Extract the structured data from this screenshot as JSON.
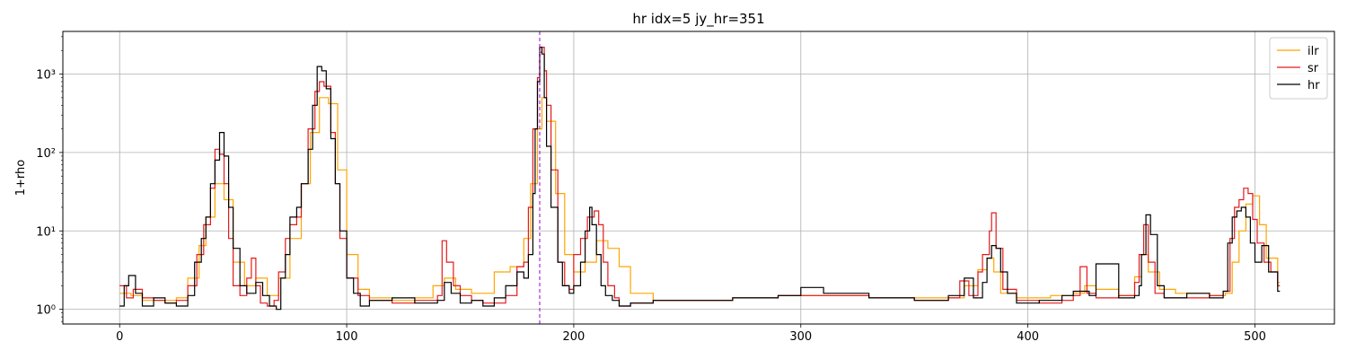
{
  "chart_data": {
    "type": "line",
    "title": "hr  idx=5  jy_hr=351",
    "xlabel": "",
    "ylabel": "1+rho",
    "xlim": [
      -25,
      535
    ],
    "ylim": [
      0.65,
      3500
    ],
    "yscale": "log",
    "grid": true,
    "legend_position": "top-right",
    "x_ticks": [
      0,
      100,
      200,
      300,
      400,
      500
    ],
    "y_ticks": [
      {
        "value": 1,
        "label": "10⁰"
      },
      {
        "value": 10,
        "label": "10¹"
      },
      {
        "value": 100,
        "label": "10²"
      },
      {
        "value": 1000,
        "label": "10³"
      }
    ],
    "vline": {
      "x": 185,
      "color": "#9400d3",
      "style": "dashed"
    },
    "series": [
      {
        "name": "ilr",
        "color": "#ffa500",
        "step": true,
        "x": [
          0,
          5,
          10,
          15,
          20,
          25,
          30,
          35,
          38,
          42,
          46,
          50,
          55,
          60,
          65,
          70,
          75,
          80,
          84,
          88,
          92,
          96,
          100,
          105,
          110,
          120,
          130,
          138,
          143,
          148,
          155,
          165,
          172,
          178,
          181,
          184,
          186,
          188,
          192,
          196,
          200,
          205,
          210,
          215,
          220,
          225,
          235,
          250,
          270,
          290,
          310,
          330,
          350,
          365,
          372,
          378,
          382,
          385,
          388,
          395,
          410,
          420,
          425,
          430,
          440,
          447,
          450,
          453,
          458,
          465,
          480,
          487,
          490,
          493,
          496,
          499,
          502,
          505,
          510
        ],
        "values": [
          1.6,
          1.5,
          1.3,
          1.3,
          1.3,
          1.4,
          2.5,
          6.5,
          15,
          40,
          25,
          4,
          2,
          2.5,
          1.5,
          2.5,
          8,
          40,
          180,
          500,
          420,
          60,
          5,
          1.8,
          1.4,
          1.3,
          1.4,
          2,
          2.5,
          1.8,
          1.6,
          3,
          3.5,
          8,
          40,
          200,
          500,
          250,
          30,
          5,
          3,
          4,
          7.5,
          6,
          3.5,
          1.6,
          1.3,
          1.3,
          1.4,
          1.5,
          1.5,
          1.4,
          1.4,
          1.4,
          2,
          3.2,
          4.5,
          3,
          1.6,
          1.4,
          1.5,
          1.6,
          2,
          1.8,
          1.5,
          2.6,
          5,
          3,
          1.8,
          1.6,
          1.5,
          1.6,
          4,
          10,
          22,
          28,
          12,
          4.5,
          2.2
        ]
      },
      {
        "name": "sr",
        "color": "#e41a1c",
        "step": true,
        "x": [
          0,
          3,
          6,
          10,
          15,
          20,
          25,
          30,
          34,
          37,
          40,
          42,
          44,
          46,
          48,
          50,
          53,
          56,
          58,
          60,
          62,
          65,
          68,
          70,
          73,
          75,
          78,
          80,
          83,
          86,
          88,
          90,
          93,
          95,
          97,
          100,
          105,
          110,
          120,
          130,
          140,
          142,
          144,
          147,
          150,
          155,
          160,
          165,
          170,
          175,
          178,
          180,
          182,
          184,
          185,
          186,
          187,
          188,
          190,
          193,
          196,
          198,
          200,
          203,
          206,
          209,
          211,
          213,
          215,
          218,
          220,
          225,
          235,
          250,
          270,
          290,
          310,
          330,
          350,
          365,
          370,
          374,
          378,
          380,
          383,
          384,
          386,
          389,
          395,
          405,
          415,
          420,
          423,
          426,
          430,
          440,
          447,
          449,
          451,
          453,
          456,
          460,
          470,
          480,
          486,
          489,
          491,
          493,
          495,
          497,
          499,
          501,
          504,
          507,
          510
        ],
        "values": [
          2,
          1.4,
          1.8,
          1.4,
          1.3,
          1.2,
          1.3,
          2,
          5,
          12,
          35,
          110,
          95,
          40,
          8,
          2,
          1.5,
          2.5,
          4.5,
          2,
          1.2,
          1.1,
          1.3,
          3,
          8,
          12,
          15,
          40,
          200,
          600,
          800,
          700,
          180,
          40,
          8,
          2.5,
          1.5,
          1.3,
          1.2,
          1.3,
          1.5,
          7.5,
          4,
          2,
          1.5,
          1.3,
          1.2,
          1.2,
          1.5,
          3.5,
          4,
          20,
          200,
          900,
          1900,
          2200,
          1100,
          400,
          60,
          4,
          2,
          1.8,
          5,
          8,
          15,
          18,
          12,
          4,
          2,
          1.4,
          1.1,
          1.2,
          1.3,
          1.3,
          1.4,
          1.5,
          1.5,
          1.4,
          1.3,
          1.4,
          2.3,
          1.5,
          3,
          5,
          10,
          17,
          6,
          1.8,
          1.3,
          1.2,
          1.3,
          1.5,
          3.5,
          1.6,
          1.4,
          1.5,
          2.2,
          5,
          12,
          4,
          1.6,
          1.4,
          1.4,
          1.5,
          1.7,
          8,
          20,
          25,
          35,
          30,
          14,
          7,
          4,
          3,
          2
        ]
      },
      {
        "name": "hr",
        "color": "#000000",
        "step": true,
        "x": [
          0,
          2,
          4,
          7,
          10,
          15,
          20,
          25,
          30,
          33,
          36,
          38,
          40,
          42,
          44,
          46,
          48,
          50,
          53,
          56,
          60,
          63,
          66,
          69,
          71,
          73,
          75,
          78,
          80,
          83,
          85,
          87,
          89,
          91,
          93,
          95,
          97,
          100,
          103,
          106,
          110,
          120,
          130,
          140,
          143,
          146,
          150,
          155,
          160,
          165,
          170,
          175,
          178,
          180,
          182,
          183,
          184,
          185,
          186,
          187,
          188,
          190,
          193,
          195,
          198,
          200,
          203,
          205,
          207,
          208,
          210,
          212,
          214,
          217,
          220,
          225,
          235,
          250,
          270,
          290,
          300,
          310,
          330,
          350,
          365,
          372,
          376,
          380,
          382,
          384,
          386,
          388,
          391,
          395,
          405,
          415,
          420,
          423,
          427,
          430,
          440,
          447,
          449,
          450,
          452,
          454,
          457,
          460,
          470,
          480,
          486,
          488,
          490,
          492,
          494,
          496,
          498,
          500,
          503,
          506,
          510
        ],
        "values": [
          1.1,
          2,
          2.7,
          1.6,
          1.1,
          1.4,
          1.2,
          1.1,
          1.5,
          4,
          8,
          15,
          40,
          80,
          180,
          90,
          20,
          6,
          2,
          1.6,
          2.2,
          1.5,
          1.1,
          1,
          2.5,
          5,
          15,
          20,
          40,
          110,
          400,
          1250,
          1100,
          650,
          150,
          40,
          10,
          2.5,
          1.6,
          1.1,
          1.3,
          1.4,
          1.2,
          1.3,
          2.2,
          1.6,
          1.2,
          1.3,
          1.1,
          1.4,
          2,
          3,
          2.5,
          5,
          30,
          200,
          800,
          2200,
          1800,
          500,
          120,
          20,
          4,
          2,
          1.6,
          2,
          4,
          10,
          20,
          12,
          5,
          2,
          1.5,
          1.3,
          1.1,
          1.2,
          1.3,
          1.3,
          1.4,
          1.5,
          1.9,
          1.6,
          1.4,
          1.3,
          1.5,
          2.5,
          1.4,
          2.2,
          4.5,
          6.5,
          6,
          3,
          1.6,
          1.2,
          1.3,
          1.5,
          1.7,
          1.7,
          1.5,
          3.8,
          1.4,
          1.5,
          2,
          5,
          16,
          9,
          2,
          1.4,
          1.6,
          1.4,
          1.7,
          7,
          15,
          18,
          20,
          15,
          7,
          4,
          6.5,
          3,
          1.7
        ]
      }
    ]
  }
}
